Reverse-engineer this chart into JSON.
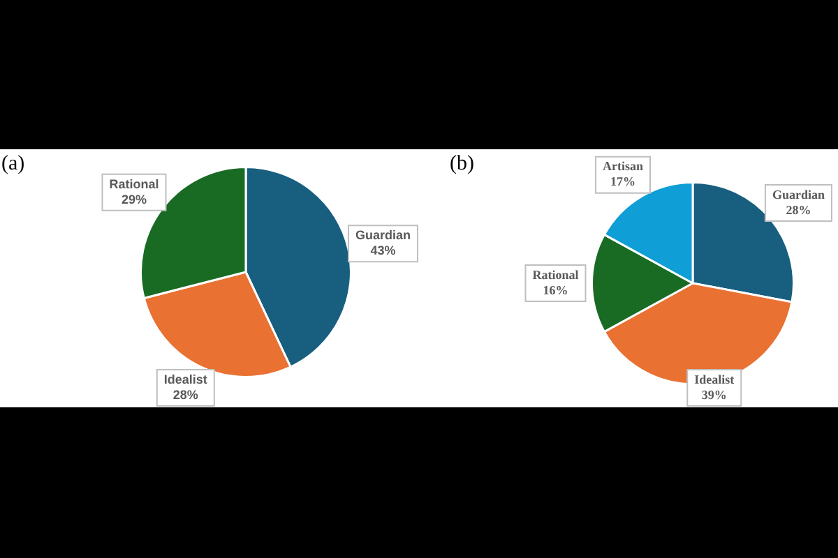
{
  "chart_data": [
    {
      "type": "pie",
      "title": "(a)",
      "categories": [
        "Guardian",
        "Idealist",
        "Rational"
      ],
      "values": [
        43,
        28,
        29
      ],
      "value_labels": [
        "43%",
        "28%",
        "29%"
      ],
      "colors": [
        "#175e7f",
        "#e97132",
        "#196b24"
      ],
      "legend": false
    },
    {
      "type": "pie",
      "title": "(b)",
      "categories": [
        "Guardian",
        "Idealist",
        "Rational",
        "Artisan"
      ],
      "values": [
        28,
        39,
        16,
        17
      ],
      "value_labels": [
        "28%",
        "39%",
        "16%",
        "17%"
      ],
      "colors": [
        "#175e7f",
        "#e97132",
        "#196b24",
        "#0f9ed5"
      ],
      "legend": false
    }
  ]
}
